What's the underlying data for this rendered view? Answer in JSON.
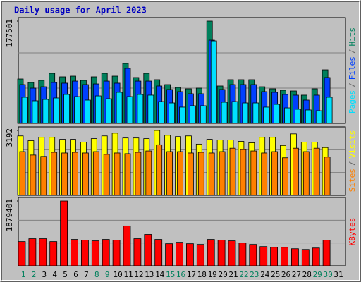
{
  "title": "Daily usage for April 2023",
  "legend_separator": "/",
  "chart_data": [
    {
      "type": "bar",
      "ylim": [
        0,
        177501
      ],
      "yticks": [
        177501
      ],
      "series": [
        {
          "name": "Hits",
          "color": "#00805c",
          "values": [
            77100,
            71000,
            74700,
            86900,
            80800,
            82000,
            74700,
            80800,
            86900,
            82000,
            104000,
            79600,
            86900,
            75900,
            67300,
            62400,
            60000,
            61200,
            177501,
            64900,
            75900,
            75900,
            75900,
            63600,
            60000,
            57500,
            56300,
            49000,
            60000,
            93000,
            0
          ]
        },
        {
          "name": "Files",
          "color": "#0040ff",
          "values": [
            67300,
            61200,
            63600,
            71000,
            69800,
            73400,
            67300,
            68500,
            73400,
            69800,
            95500,
            73400,
            73400,
            64900,
            58800,
            55100,
            51400,
            51400,
            144400,
            58800,
            67300,
            67300,
            67300,
            55100,
            53900,
            50200,
            49000,
            40400,
            49000,
            79600,
            0
          ]
        },
        {
          "name": "Pages",
          "color": "#00e0ff",
          "values": [
            45300,
            39200,
            41600,
            44100,
            50200,
            46500,
            40400,
            47700,
            42800,
            53900,
            46500,
            50200,
            49000,
            37900,
            35500,
            28200,
            30600,
            30600,
            143200,
            36700,
            37900,
            35500,
            35500,
            28200,
            33000,
            26900,
            24500,
            23300,
            22000,
            45300,
            0
          ]
        }
      ]
    },
    {
      "type": "bar",
      "ylim": [
        0,
        3192
      ],
      "yticks": [
        3192
      ],
      "series": [
        {
          "name": "Visits",
          "color": "#ffff00",
          "values": [
            2923,
            2688,
            2856,
            2856,
            2755,
            2755,
            2621,
            2789,
            2923,
            3058,
            2822,
            2822,
            2789,
            3192,
            2957,
            2890,
            2923,
            2520,
            2755,
            2722,
            2722,
            2654,
            2587,
            2856,
            2856,
            2453,
            3024,
            2621,
            2621,
            2352,
            0
          ]
        },
        {
          "name": "Sites",
          "color": "#ff8000",
          "values": [
            2150,
            1982,
            1915,
            2117,
            2083,
            2117,
            2083,
            2150,
            2016,
            2083,
            2050,
            2117,
            2184,
            2486,
            2150,
            2150,
            2083,
            2117,
            2083,
            2150,
            2318,
            2251,
            2184,
            2083,
            2150,
            1848,
            2318,
            2150,
            2318,
            1882,
            0
          ]
        }
      ]
    },
    {
      "type": "bar",
      "ylim": [
        0,
        1879401
      ],
      "yticks": [
        1879401
      ],
      "categories": [
        "1",
        "2",
        "3",
        "4",
        "5",
        "6",
        "7",
        "8",
        "9",
        "10",
        "11",
        "12",
        "13",
        "14",
        "15",
        "16",
        "17",
        "18",
        "19",
        "20",
        "21",
        "22",
        "23",
        "24",
        "25",
        "26",
        "27",
        "28",
        "29",
        "30",
        "31"
      ],
      "category_colors": [
        "#00805c",
        "#00805c",
        "#000000",
        "#000000",
        "#000000",
        "#000000",
        "#000000",
        "#00805c",
        "#00805c",
        "#000000",
        "#000000",
        "#000000",
        "#000000",
        "#000000",
        "#00805c",
        "#00805c",
        "#000000",
        "#000000",
        "#000000",
        "#000000",
        "#000000",
        "#00805c",
        "#00805c",
        "#000000",
        "#000000",
        "#000000",
        "#000000",
        "#000000",
        "#00805c",
        "#00805c",
        "#000000"
      ],
      "series": [
        {
          "name": "KBytes",
          "color": "#ff0000",
          "values": [
            702200,
            784800,
            784800,
            702200,
            1879401,
            764200,
            743500,
            722900,
            764200,
            743500,
            1156600,
            784800,
            908700,
            764200,
            640200,
            681500,
            640200,
            619600,
            764200,
            743500,
            722900,
            660900,
            619600,
            557600,
            537000,
            537000,
            495700,
            475000,
            516300,
            743500,
            0
          ]
        }
      ]
    }
  ]
}
